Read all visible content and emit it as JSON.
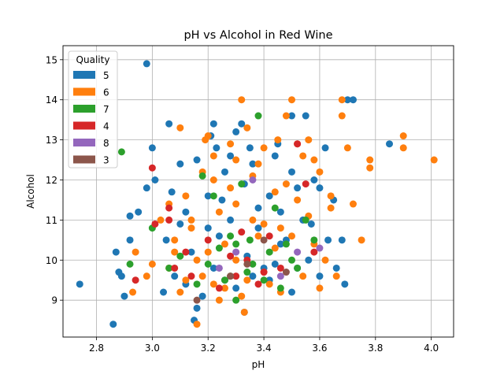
{
  "chart_data": {
    "type": "scatter",
    "title": "pH vs Alcohol in Red Wine",
    "xlabel": "pH",
    "ylabel": "Alcohol",
    "xlim": [
      2.68,
      4.08
    ],
    "ylim": [
      8.08,
      15.35
    ],
    "xticks": [
      "2.8",
      "3.0",
      "3.2",
      "3.4",
      "3.6",
      "3.8",
      "4.0"
    ],
    "yticks": [
      "9",
      "10",
      "11",
      "12",
      "13",
      "14",
      "15"
    ],
    "grid": true,
    "legend": {
      "title": "Quality",
      "placement": "top-left",
      "entries": [
        "5",
        "6",
        "7",
        "4",
        "8",
        "3"
      ]
    },
    "colors": {
      "5": "#1f77b4",
      "6": "#ff7f0e",
      "7": "#2ca02c",
      "4": "#d62728",
      "8": "#9467bd",
      "3": "#8c564b"
    },
    "series": [
      {
        "name": "5",
        "points": [
          [
            2.74,
            9.4
          ],
          [
            2.86,
            8.4
          ],
          [
            2.87,
            10.2
          ],
          [
            2.88,
            9.7
          ],
          [
            2.89,
            9.6
          ],
          [
            2.9,
            9.1
          ],
          [
            2.92,
            10.5
          ],
          [
            2.92,
            11.1
          ],
          [
            2.95,
            11.2
          ],
          [
            2.98,
            14.9
          ],
          [
            2.98,
            11.8
          ],
          [
            3.0,
            12.8
          ],
          [
            3.01,
            12.0
          ],
          [
            3.05,
            10.5
          ],
          [
            3.06,
            13.4
          ],
          [
            3.07,
            11.7
          ],
          [
            3.1,
            12.4
          ],
          [
            3.12,
            11.2
          ],
          [
            3.15,
            8.5
          ],
          [
            3.16,
            8.8
          ],
          [
            3.2,
            10.8
          ],
          [
            3.21,
            13.1
          ],
          [
            3.22,
            13.4
          ],
          [
            3.23,
            12.8
          ],
          [
            3.25,
            11.5
          ],
          [
            3.28,
            12.6
          ],
          [
            3.3,
            13.2
          ],
          [
            3.32,
            13.4
          ],
          [
            3.33,
            8.7
          ],
          [
            3.35,
            12.8
          ],
          [
            3.38,
            11.3
          ],
          [
            3.4,
            9.8
          ],
          [
            3.42,
            11.6
          ],
          [
            3.45,
            12.9
          ],
          [
            3.48,
            10.5
          ],
          [
            3.5,
            13.6
          ],
          [
            3.52,
            11.8
          ],
          [
            3.55,
            13.6
          ],
          [
            3.58,
            12.0
          ],
          [
            3.6,
            11.8
          ],
          [
            3.62,
            12.8
          ],
          [
            3.65,
            11.5
          ],
          [
            3.68,
            10.5
          ],
          [
            3.69,
            9.4
          ],
          [
            3.7,
            14.0
          ],
          [
            3.72,
            14.0
          ],
          [
            3.85,
            12.9
          ],
          [
            3.04,
            9.2
          ],
          [
            3.08,
            9.6
          ],
          [
            3.12,
            9.4
          ],
          [
            3.14,
            10.2
          ],
          [
            3.18,
            9.1
          ],
          [
            3.22,
            9.8
          ],
          [
            3.24,
            10.6
          ],
          [
            3.26,
            9.5
          ],
          [
            3.28,
            11.0
          ],
          [
            3.3,
            9.3
          ],
          [
            3.34,
            10.1
          ],
          [
            3.36,
            9.6
          ],
          [
            3.38,
            10.8
          ],
          [
            3.42,
            9.5
          ],
          [
            3.44,
            9.9
          ],
          [
            3.46,
            10.4
          ],
          [
            3.5,
            9.2
          ],
          [
            3.52,
            9.8
          ],
          [
            3.56,
            10.0
          ],
          [
            3.6,
            9.6
          ],
          [
            3.16,
            12.5
          ],
          [
            3.26,
            12.2
          ],
          [
            3.33,
            11.9
          ],
          [
            3.46,
            11.2
          ],
          [
            3.5,
            12.2
          ],
          [
            3.54,
            11.0
          ],
          [
            3.57,
            10.9
          ],
          [
            3.63,
            10.5
          ],
          [
            3.66,
            9.8
          ],
          [
            3.1,
            10.9
          ],
          [
            3.2,
            11.6
          ],
          [
            3.36,
            12.4
          ],
          [
            3.44,
            12.6
          ]
        ]
      },
      {
        "name": "6",
        "points": [
          [
            2.93,
            9.2
          ],
          [
            2.94,
            10.2
          ],
          [
            2.98,
            9.6
          ],
          [
            3.0,
            9.9
          ],
          [
            3.03,
            11.0
          ],
          [
            3.06,
            11.4
          ],
          [
            3.08,
            10.5
          ],
          [
            3.1,
            13.3
          ],
          [
            3.12,
            9.5
          ],
          [
            3.14,
            11.0
          ],
          [
            3.16,
            8.4
          ],
          [
            3.18,
            12.2
          ],
          [
            3.19,
            13.0
          ],
          [
            3.2,
            13.1
          ],
          [
            3.22,
            12.0
          ],
          [
            3.24,
            9.0
          ],
          [
            3.26,
            10.4
          ],
          [
            3.28,
            11.8
          ],
          [
            3.3,
            12.5
          ],
          [
            3.32,
            14.0
          ],
          [
            3.33,
            8.7
          ],
          [
            3.34,
            13.3
          ],
          [
            3.36,
            12.1
          ],
          [
            3.38,
            10.6
          ],
          [
            3.4,
            12.8
          ],
          [
            3.42,
            9.4
          ],
          [
            3.45,
            13.0
          ],
          [
            3.48,
            13.6
          ],
          [
            3.5,
            14.0
          ],
          [
            3.52,
            11.5
          ],
          [
            3.54,
            12.6
          ],
          [
            3.56,
            13.0
          ],
          [
            3.58,
            12.5
          ],
          [
            3.6,
            12.2
          ],
          [
            3.62,
            10.0
          ],
          [
            3.64,
            11.3
          ],
          [
            3.66,
            9.6
          ],
          [
            3.68,
            13.6
          ],
          [
            3.68,
            14.0
          ],
          [
            3.7,
            12.8
          ],
          [
            3.72,
            11.4
          ],
          [
            3.75,
            10.5
          ],
          [
            3.78,
            12.3
          ],
          [
            3.78,
            12.5
          ],
          [
            3.9,
            12.8
          ],
          [
            3.9,
            13.1
          ],
          [
            4.01,
            12.5
          ],
          [
            3.06,
            9.8
          ],
          [
            3.1,
            9.2
          ],
          [
            3.14,
            10.8
          ],
          [
            3.18,
            9.6
          ],
          [
            3.2,
            10.2
          ],
          [
            3.24,
            11.2
          ],
          [
            3.26,
            9.3
          ],
          [
            3.3,
            10.0
          ],
          [
            3.34,
            9.5
          ],
          [
            3.36,
            11.0
          ],
          [
            3.4,
            9.7
          ],
          [
            3.44,
            10.3
          ],
          [
            3.46,
            9.2
          ],
          [
            3.5,
            10.6
          ],
          [
            3.54,
            9.6
          ],
          [
            3.58,
            10.4
          ],
          [
            3.6,
            9.3
          ],
          [
            3.22,
            12.6
          ],
          [
            3.3,
            11.4
          ],
          [
            3.38,
            12.4
          ],
          [
            3.48,
            11.9
          ],
          [
            3.56,
            11.1
          ],
          [
            3.64,
            11.6
          ],
          [
            3.12,
            11.6
          ],
          [
            3.28,
            12.9
          ],
          [
            3.44,
            11.7
          ],
          [
            3.52,
            12.9
          ],
          [
            3.16,
            10.0
          ],
          [
            3.4,
            10.9
          ],
          [
            3.32,
            9.1
          ],
          [
            3.08,
            10.2
          ],
          [
            3.22,
            9.4
          ],
          [
            3.46,
            10.8
          ]
        ]
      },
      {
        "name": "7",
        "points": [
          [
            2.89,
            12.7
          ],
          [
            2.92,
            9.9
          ],
          [
            3.0,
            10.8
          ],
          [
            3.06,
            9.8
          ],
          [
            3.1,
            10.1
          ],
          [
            3.16,
            9.4
          ],
          [
            3.18,
            12.1
          ],
          [
            3.2,
            9.9
          ],
          [
            3.22,
            11.6
          ],
          [
            3.24,
            10.3
          ],
          [
            3.26,
            9.5
          ],
          [
            3.28,
            10.6
          ],
          [
            3.3,
            9.0
          ],
          [
            3.32,
            11.9
          ],
          [
            3.34,
            9.7
          ],
          [
            3.35,
            10.5
          ],
          [
            3.38,
            13.6
          ],
          [
            3.4,
            9.5
          ],
          [
            3.42,
            10.2
          ],
          [
            3.44,
            11.3
          ],
          [
            3.46,
            9.3
          ],
          [
            3.48,
            10.4
          ],
          [
            3.5,
            10.0
          ],
          [
            3.52,
            9.8
          ],
          [
            3.55,
            11.0
          ],
          [
            3.58,
            10.5
          ],
          [
            3.28,
            9.6
          ],
          [
            3.36,
            9.9
          ],
          [
            3.3,
            10.4
          ]
        ]
      },
      {
        "name": "4",
        "points": [
          [
            2.94,
            9.5
          ],
          [
            3.01,
            10.9
          ],
          [
            3.0,
            12.3
          ],
          [
            3.06,
            11.3
          ],
          [
            3.06,
            11.0
          ],
          [
            3.08,
            9.8
          ],
          [
            3.12,
            10.2
          ],
          [
            3.14,
            9.6
          ],
          [
            3.2,
            10.5
          ],
          [
            3.24,
            9.3
          ],
          [
            3.28,
            10.1
          ],
          [
            3.3,
            9.6
          ],
          [
            3.34,
            10.0
          ],
          [
            3.38,
            9.4
          ],
          [
            3.42,
            10.6
          ],
          [
            3.46,
            9.8
          ],
          [
            3.52,
            12.9
          ],
          [
            3.55,
            11.9
          ],
          [
            3.58,
            10.2
          ],
          [
            3.32,
            10.7
          ],
          [
            3.4,
            9.7
          ]
        ]
      },
      {
        "name": "8",
        "points": [
          [
            3.24,
            9.8
          ],
          [
            3.3,
            10.2
          ],
          [
            3.46,
            9.6
          ],
          [
            3.52,
            10.2
          ],
          [
            3.6,
            10.3
          ],
          [
            3.36,
            12.0
          ]
        ]
      },
      {
        "name": "3",
        "points": [
          [
            3.16,
            9.0
          ],
          [
            3.28,
            9.6
          ],
          [
            3.34,
            9.9
          ],
          [
            3.4,
            10.5
          ],
          [
            3.48,
            9.7
          ]
        ]
      }
    ]
  }
}
